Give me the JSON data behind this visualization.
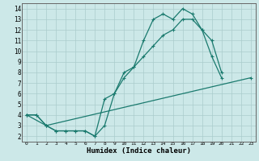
{
  "xlabel": "Humidex (Indice chaleur)",
  "bg_color": "#cce8e8",
  "grid_color": "#aacccc",
  "line_color": "#1a7a6e",
  "marker": "+",
  "markersize": 3,
  "linewidth": 0.9,
  "xlim": [
    -0.5,
    23.5
  ],
  "ylim": [
    1.5,
    14.5
  ],
  "xticks": [
    0,
    1,
    2,
    3,
    4,
    5,
    6,
    7,
    8,
    9,
    10,
    11,
    12,
    13,
    14,
    15,
    16,
    17,
    18,
    19,
    20,
    21,
    22,
    23
  ],
  "yticks": [
    2,
    3,
    4,
    5,
    6,
    7,
    8,
    9,
    10,
    11,
    12,
    13,
    14
  ],
  "curve1_x": [
    0,
    1,
    2,
    3,
    4,
    5,
    6,
    7,
    8,
    9,
    10,
    11,
    12,
    13,
    14,
    15,
    16,
    17,
    18,
    19,
    20
  ],
  "curve1_y": [
    4,
    4,
    3,
    2.5,
    2.5,
    2.5,
    2.5,
    2,
    3,
    6,
    8,
    8.5,
    11,
    13,
    13.5,
    13,
    14,
    13.5,
    12,
    9.5,
    7.5
  ],
  "curve2_x": [
    0,
    1,
    2,
    3,
    4,
    5,
    6,
    7,
    8,
    9,
    10,
    11,
    12,
    13,
    14,
    15,
    16,
    17,
    18,
    19,
    20
  ],
  "curve2_y": [
    4,
    4,
    3,
    2.5,
    2.5,
    2.5,
    2.5,
    2,
    5.5,
    6,
    7.5,
    8.5,
    9.5,
    10.5,
    11.5,
    12,
    13,
    13,
    12,
    11,
    8
  ],
  "curve3_x": [
    0,
    2,
    23
  ],
  "curve3_y": [
    4,
    3,
    7.5
  ]
}
